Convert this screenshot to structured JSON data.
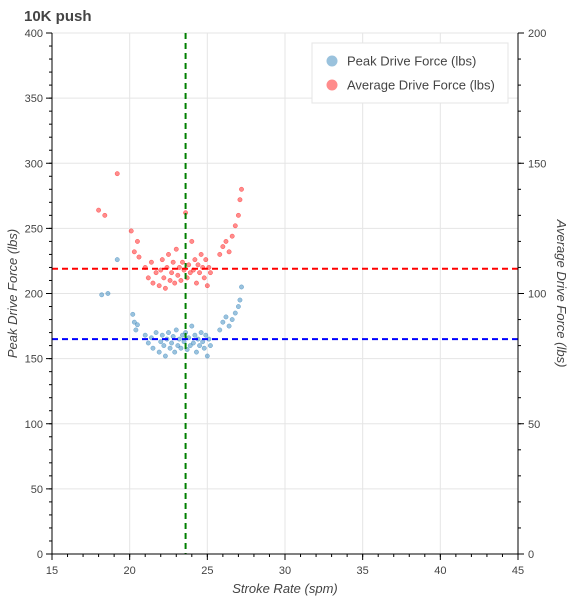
{
  "chart_data": {
    "type": "scatter",
    "title": "10K push",
    "xlabel": "Stroke Rate (spm)",
    "ylabel": "Peak Drive Force (lbs)",
    "y2label": "Average Drive Force (lbs)",
    "xlim": [
      15,
      45
    ],
    "ylim": [
      0,
      400
    ],
    "y2lim": [
      0,
      200
    ],
    "x_ticks": [
      15,
      20,
      25,
      30,
      35,
      40,
      45
    ],
    "y_ticks": [
      0,
      50,
      100,
      150,
      200,
      250,
      300,
      350,
      400
    ],
    "y2_ticks": [
      0,
      50,
      100,
      150,
      200
    ],
    "grid": true,
    "legend_position": "top-right",
    "series": [
      {
        "name": "Peak Drive Force (lbs)",
        "axis": "left",
        "color": "#1f77b4",
        "points": [
          [
            18.2,
            199
          ],
          [
            18.6,
            200
          ],
          [
            19.2,
            226
          ],
          [
            20.2,
            184
          ],
          [
            20.3,
            178
          ],
          [
            20.4,
            172
          ],
          [
            20.5,
            176
          ],
          [
            21.0,
            168
          ],
          [
            21.2,
            162
          ],
          [
            21.4,
            166
          ],
          [
            21.5,
            158
          ],
          [
            21.7,
            170
          ],
          [
            21.9,
            155
          ],
          [
            22.0,
            163
          ],
          [
            22.1,
            168
          ],
          [
            22.2,
            160
          ],
          [
            22.3,
            152
          ],
          [
            22.4,
            165
          ],
          [
            22.5,
            170
          ],
          [
            22.6,
            158
          ],
          [
            22.7,
            162
          ],
          [
            22.8,
            167
          ],
          [
            22.9,
            155
          ],
          [
            23.0,
            172
          ],
          [
            23.1,
            160
          ],
          [
            23.2,
            165
          ],
          [
            23.3,
            158
          ],
          [
            23.4,
            168
          ],
          [
            23.5,
            163
          ],
          [
            23.6,
            170
          ],
          [
            23.7,
            157
          ],
          [
            23.8,
            166
          ],
          [
            23.9,
            160
          ],
          [
            24.0,
            175
          ],
          [
            24.1,
            162
          ],
          [
            24.2,
            168
          ],
          [
            24.3,
            155
          ],
          [
            24.4,
            165
          ],
          [
            24.5,
            160
          ],
          [
            24.6,
            170
          ],
          [
            24.7,
            163
          ],
          [
            24.8,
            158
          ],
          [
            24.9,
            168
          ],
          [
            25.0,
            152
          ],
          [
            25.1,
            165
          ],
          [
            25.2,
            160
          ],
          [
            25.8,
            172
          ],
          [
            26.0,
            178
          ],
          [
            26.2,
            182
          ],
          [
            26.4,
            175
          ],
          [
            26.6,
            180
          ],
          [
            26.8,
            185
          ],
          [
            27.0,
            190
          ],
          [
            27.1,
            195
          ],
          [
            27.2,
            205
          ]
        ]
      },
      {
        "name": "Average Drive Force (lbs)",
        "axis": "right",
        "color": "#ff0000",
        "points": [
          [
            18.0,
            132
          ],
          [
            18.4,
            130
          ],
          [
            19.2,
            146
          ],
          [
            20.1,
            124
          ],
          [
            20.3,
            116
          ],
          [
            20.5,
            120
          ],
          [
            20.6,
            114
          ],
          [
            21.0,
            110
          ],
          [
            21.2,
            106
          ],
          [
            21.4,
            112
          ],
          [
            21.5,
            104
          ],
          [
            21.7,
            108
          ],
          [
            21.9,
            103
          ],
          [
            22.0,
            109
          ],
          [
            22.1,
            113
          ],
          [
            22.2,
            106
          ],
          [
            22.3,
            102
          ],
          [
            22.4,
            110
          ],
          [
            22.5,
            115
          ],
          [
            22.6,
            105
          ],
          [
            22.7,
            108
          ],
          [
            22.8,
            112
          ],
          [
            22.9,
            104
          ],
          [
            23.0,
            117
          ],
          [
            23.1,
            107
          ],
          [
            23.2,
            110
          ],
          [
            23.3,
            105
          ],
          [
            23.4,
            112
          ],
          [
            23.5,
            109
          ],
          [
            23.6,
            131
          ],
          [
            23.7,
            106
          ],
          [
            23.8,
            111
          ],
          [
            23.9,
            108
          ],
          [
            24.0,
            120
          ],
          [
            24.1,
            109
          ],
          [
            24.2,
            113
          ],
          [
            24.3,
            104
          ],
          [
            24.4,
            111
          ],
          [
            24.5,
            108
          ],
          [
            24.6,
            115
          ],
          [
            24.7,
            110
          ],
          [
            24.8,
            106
          ],
          [
            24.9,
            113
          ],
          [
            25.0,
            103
          ],
          [
            25.1,
            110
          ],
          [
            25.2,
            108
          ],
          [
            25.8,
            115
          ],
          [
            26.0,
            118
          ],
          [
            26.2,
            120
          ],
          [
            26.4,
            116
          ],
          [
            26.6,
            122
          ],
          [
            26.8,
            126
          ],
          [
            27.0,
            130
          ],
          [
            27.1,
            136
          ],
          [
            27.2,
            140
          ]
        ]
      }
    ],
    "reference_lines": [
      {
        "orientation": "vertical",
        "axis": "x",
        "value": 23.6,
        "color": "#008000"
      },
      {
        "orientation": "horizontal",
        "axis": "left",
        "value": 165,
        "color": "#0000ff"
      },
      {
        "orientation": "horizontal",
        "axis": "right",
        "value": 109.5,
        "color": "#ff0000"
      }
    ]
  }
}
